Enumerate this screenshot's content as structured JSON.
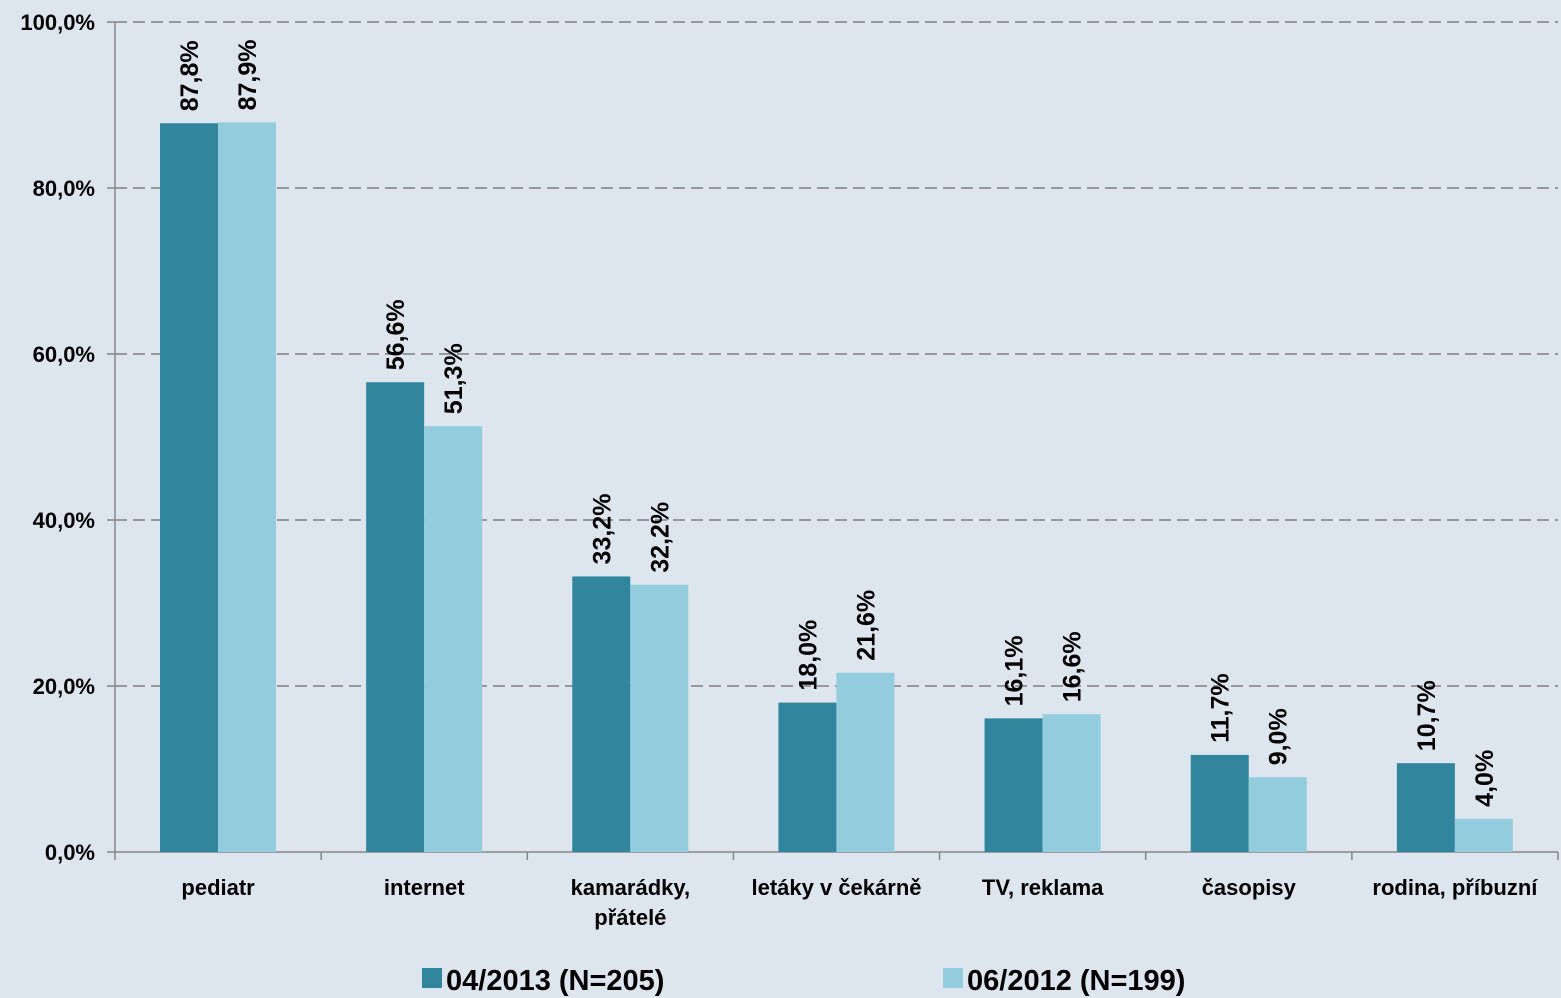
{
  "chart_data": {
    "type": "bar",
    "categories": [
      [
        "pediatr"
      ],
      [
        "internet"
      ],
      [
        "kamarádky,",
        "přátelé"
      ],
      [
        "letáky v čekárně"
      ],
      [
        "TV, reklama"
      ],
      [
        "časopisy"
      ],
      [
        "rodina, příbuzní"
      ]
    ],
    "series": [
      {
        "name": "04/2013 (N=205)",
        "color": "#31859c",
        "values": [
          87.8,
          56.6,
          33.2,
          18.0,
          16.1,
          11.7,
          10.7
        ],
        "labels": [
          "87,8%",
          "56,6%",
          "33,2%",
          "18,0%",
          "16,1%",
          "11,7%",
          "10,7%"
        ]
      },
      {
        "name": "06/2012 (N=199)",
        "color": "#93cddd",
        "values": [
          87.9,
          51.3,
          32.2,
          21.6,
          16.6,
          9.0,
          4.0
        ],
        "labels": [
          "87,9%",
          "51,3%",
          "32,2%",
          "21,6%",
          "16,6%",
          "9,0%",
          "4,0%"
        ]
      }
    ],
    "ylim": [
      0,
      100
    ],
    "yticks": [
      0,
      20,
      40,
      60,
      80,
      100
    ],
    "ytick_labels": [
      "0,0%",
      "20,0%",
      "40,0%",
      "60,0%",
      "80,0%",
      "100,0%"
    ],
    "grid": true,
    "legend_position": "bottom"
  }
}
